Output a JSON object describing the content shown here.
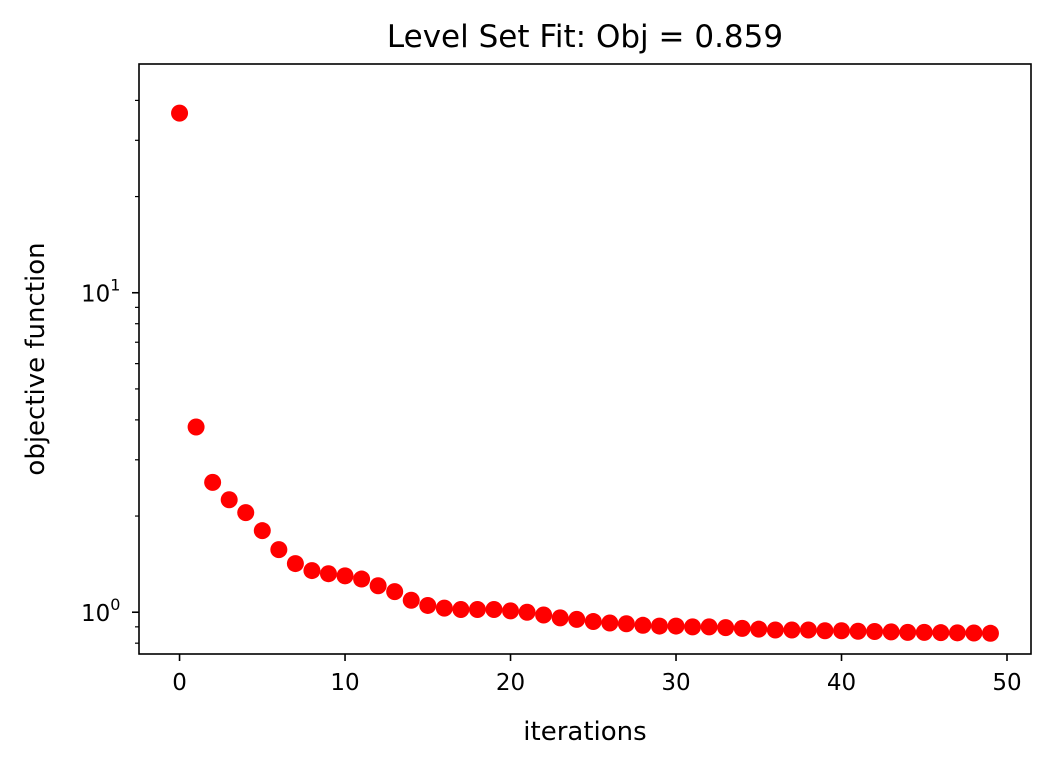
{
  "chart_data": {
    "type": "scatter",
    "title": "Level Set Fit: Obj = 0.859",
    "xlabel": "iterations",
    "ylabel": "objective function",
    "x_scale": "linear",
    "y_scale": "log",
    "xlim": [
      -2.45,
      51.45
    ],
    "ylim": [
      0.74,
      52
    ],
    "x_ticks": [
      0,
      10,
      20,
      30,
      40,
      50
    ],
    "x_tick_labels": [
      "0",
      "10",
      "20",
      "30",
      "40",
      "50"
    ],
    "y_major_ticks": [
      {
        "value": 1,
        "base": "10",
        "exp": "0"
      },
      {
        "value": 10,
        "base": "10",
        "exp": "1"
      }
    ],
    "y_minor_ticks": [
      0.8,
      0.9,
      2,
      3,
      4,
      5,
      6,
      7,
      8,
      9,
      20,
      30,
      40
    ],
    "grid": false,
    "legend": "none",
    "marker_color": "#ff0000",
    "series": [
      {
        "x": [
          0,
          1,
          2,
          3,
          4,
          5,
          6,
          7,
          8,
          9,
          10,
          11,
          12,
          13,
          14,
          15,
          16,
          17,
          18,
          19,
          20,
          21,
          22,
          23,
          24,
          25,
          26,
          27,
          28,
          29,
          30,
          31,
          32,
          33,
          34,
          35,
          36,
          37,
          38,
          39,
          40,
          41,
          42,
          43,
          44,
          45,
          46,
          47,
          48,
          49
        ],
        "y": [
          36.5,
          3.8,
          2.55,
          2.25,
          2.05,
          1.8,
          1.57,
          1.42,
          1.35,
          1.32,
          1.3,
          1.27,
          1.21,
          1.16,
          1.09,
          1.05,
          1.03,
          1.02,
          1.02,
          1.02,
          1.01,
          1.0,
          0.98,
          0.96,
          0.95,
          0.935,
          0.925,
          0.92,
          0.91,
          0.905,
          0.905,
          0.9,
          0.9,
          0.895,
          0.89,
          0.885,
          0.88,
          0.88,
          0.88,
          0.875,
          0.875,
          0.872,
          0.87,
          0.868,
          0.865,
          0.865,
          0.863,
          0.862,
          0.861,
          0.859
        ]
      }
    ]
  }
}
